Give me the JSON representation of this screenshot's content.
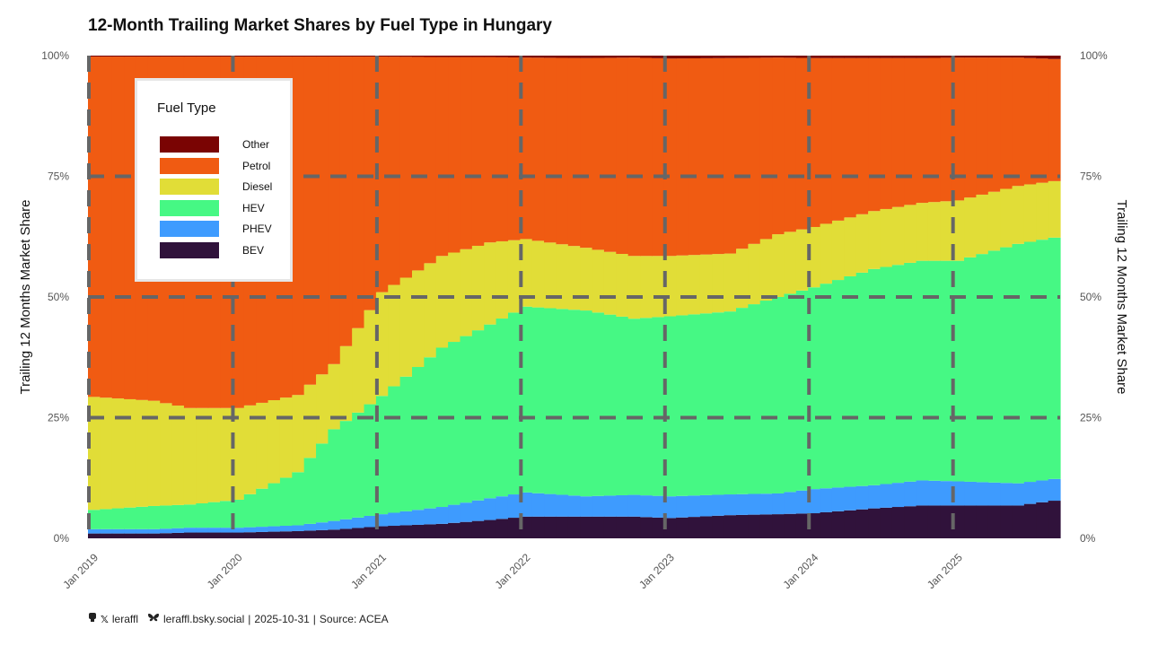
{
  "title": "12-Month Trailing Market Shares by Fuel Type in Hungary",
  "caption": {
    "mastodon_icon": "mastodon-icon",
    "x_icon": "x-icon",
    "x_handle": "leraffl",
    "bsky_icon": "butterfly-icon",
    "bsky_handle": "leraffl.bsky.social",
    "sep1": "|",
    "date": "2025-10-31",
    "sep2": "|",
    "source": "Source: ACEA"
  },
  "legend": {
    "title": "Fuel Type",
    "items": [
      {
        "label": "Other",
        "color": "#7a0403"
      },
      {
        "label": "Petrol",
        "color": "#f05b12"
      },
      {
        "label": "Diesel",
        "color": "#e1dd37"
      },
      {
        "label": "HEV",
        "color": "#46f884"
      },
      {
        "label": "PHEV",
        "color": "#3e9bfe"
      },
      {
        "label": "BEV",
        "color": "#30123b"
      }
    ]
  },
  "chart_data": {
    "type": "area",
    "title": "12-Month Trailing Market Shares by Fuel Type in Hungary",
    "ylabel": "Trailing 12 Months Market Share",
    "ylabel_right": "Trailing 12 Months Market Share",
    "xlabel": "",
    "ylim": [
      0,
      1
    ],
    "yticks": [
      "0%",
      "25%",
      "50%",
      "75%",
      "100%"
    ],
    "xticks": [
      "Jan 2019",
      "Jan 2020",
      "Jan 2021",
      "Jan 2022",
      "Jan 2023",
      "Jan 2024",
      "Jan 2025"
    ],
    "x_start": "2019-01",
    "x_end": "2025-09",
    "grid": true,
    "legend_position": "top-left inside",
    "stack_order_bottom_to_top": [
      "BEV",
      "PHEV",
      "HEV",
      "Diesel",
      "Petrol",
      "Other"
    ],
    "anchor_months": [
      "2019-01",
      "2019-06",
      "2019-09",
      "2020-01",
      "2020-06",
      "2020-09",
      "2021-01",
      "2021-06",
      "2021-10",
      "2022-01",
      "2022-06",
      "2022-10",
      "2023-01",
      "2023-06",
      "2023-10",
      "2024-01",
      "2024-06",
      "2024-10",
      "2025-01",
      "2025-06",
      "2025-09"
    ],
    "series": [
      {
        "name": "BEV",
        "color": "#30123b",
        "values": [
          0.01,
          0.01,
          0.012,
          0.012,
          0.015,
          0.018,
          0.025,
          0.03,
          0.038,
          0.045,
          0.045,
          0.045,
          0.042,
          0.048,
          0.05,
          0.052,
          0.062,
          0.068,
          0.068,
          0.068,
          0.078
        ]
      },
      {
        "name": "PHEV",
        "color": "#3e9bfe",
        "values": [
          0.009,
          0.009,
          0.01,
          0.01,
          0.012,
          0.018,
          0.025,
          0.035,
          0.045,
          0.05,
          0.042,
          0.045,
          0.045,
          0.043,
          0.043,
          0.05,
          0.048,
          0.052,
          0.05,
          0.046,
          0.045
        ]
      },
      {
        "name": "HEV",
        "color": "#46f884",
        "values": [
          0.04,
          0.048,
          0.048,
          0.058,
          0.11,
          0.19,
          0.245,
          0.33,
          0.36,
          0.385,
          0.385,
          0.365,
          0.373,
          0.379,
          0.407,
          0.418,
          0.448,
          0.455,
          0.457,
          0.496,
          0.5
        ]
      },
      {
        "name": "Diesel",
        "color": "#e1dd37",
        "values": [
          0.234,
          0.218,
          0.2,
          0.19,
          0.16,
          0.135,
          0.215,
          0.19,
          0.17,
          0.14,
          0.13,
          0.13,
          0.125,
          0.12,
          0.13,
          0.125,
          0.12,
          0.12,
          0.125,
          0.12,
          0.117
        ]
      },
      {
        "name": "Petrol",
        "color": "#f05b12",
        "values": [
          0.705,
          0.713,
          0.728,
          0.728,
          0.701,
          0.637,
          0.488,
          0.412,
          0.384,
          0.376,
          0.393,
          0.411,
          0.409,
          0.405,
          0.366,
          0.35,
          0.317,
          0.3,
          0.296,
          0.266,
          0.253
        ]
      },
      {
        "name": "Other",
        "color": "#7a0403",
        "values": [
          0.002,
          0.002,
          0.002,
          0.002,
          0.002,
          0.002,
          0.002,
          0.003,
          0.003,
          0.004,
          0.005,
          0.004,
          0.006,
          0.005,
          0.004,
          0.005,
          0.005,
          0.005,
          0.004,
          0.004,
          0.007
        ]
      }
    ]
  }
}
